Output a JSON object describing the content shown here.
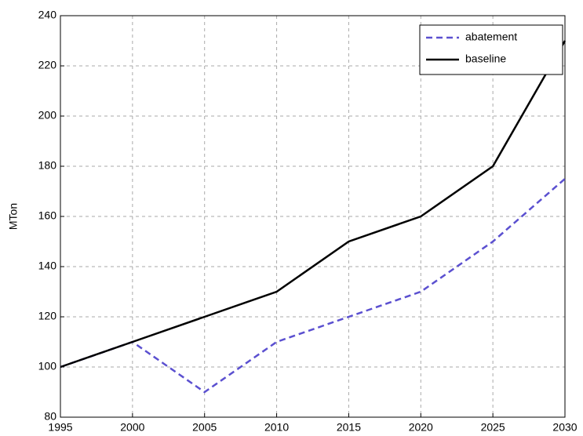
{
  "chart_data": {
    "type": "line",
    "y_label": "MTon",
    "x": [
      1995,
      2000,
      2005,
      2010,
      2015,
      2020,
      2025,
      2030
    ],
    "series": [
      {
        "name": "abatement",
        "color": "#5b50d0",
        "dash": true,
        "values": [
          100,
          110,
          90,
          110,
          120,
          130,
          150,
          175
        ]
      },
      {
        "name": "baseline",
        "color": "#000000",
        "dash": false,
        "values": [
          100,
          110,
          120,
          130,
          150,
          160,
          180,
          230
        ]
      }
    ],
    "xlim": [
      1995,
      2030
    ],
    "xticks": [
      1995,
      2000,
      2005,
      2010,
      2015,
      2020,
      2025,
      2030
    ],
    "ylim": [
      80,
      240
    ],
    "yticks": [
      80,
      100,
      120,
      140,
      160,
      180,
      200,
      220,
      240
    ],
    "grid": true,
    "legend": "upper right"
  }
}
